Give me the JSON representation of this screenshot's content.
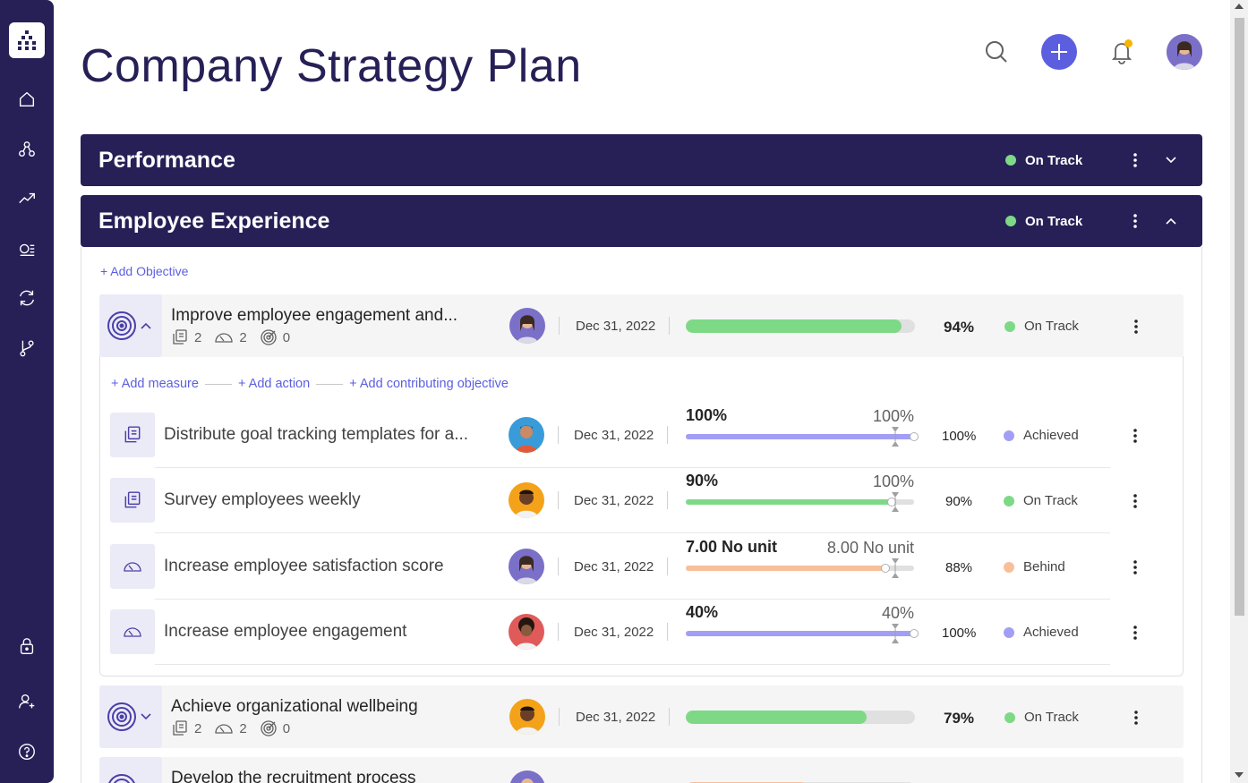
{
  "page": {
    "title": "Company Strategy Plan"
  },
  "colors": {
    "brand": "#262057",
    "accent": "#5b5fdf",
    "on_track": "#7ed987",
    "achieved": "#a39ef5",
    "behind": "#f8bf9b",
    "notification": "#f7b500"
  },
  "sidebar": {
    "icons": [
      "logo-icon",
      "home-icon",
      "hierarchy-icon",
      "trend-icon",
      "goals-list-icon",
      "refresh-icon",
      "branch-icon",
      "lock-icon",
      "add-user-icon",
      "help-icon"
    ]
  },
  "categories": [
    {
      "title": "Performance",
      "status": "On Track"
    },
    {
      "title": "Employee Experience",
      "status": "On Track"
    }
  ],
  "add_objective": "+ Add Objective",
  "sub_links": {
    "add_measure": "+ Add measure",
    "add_action": "+ Add action",
    "add_contributing": "+ Add contributing objective"
  },
  "objectives": [
    {
      "title": "Improve employee engagement and...",
      "actions": "2",
      "measures": "2",
      "objectives": "0",
      "date": "Dec 31, 2022",
      "progress": 0.94,
      "percent": "94%",
      "status": "On Track"
    },
    {
      "title": "Achieve organizational wellbeing",
      "actions": "2",
      "measures": "2",
      "objectives": "0",
      "date": "Dec 31, 2022",
      "progress": 0.79,
      "percent": "79%",
      "status": "On Track"
    },
    {
      "title": "Develop the recruitment process"
    }
  ],
  "measures": [
    {
      "title": "Distribute goal tracking templates for a...",
      "type": "action",
      "date": "Dec 31, 2022",
      "current": "100%",
      "target": "100%",
      "progress": 1.0,
      "percent": "100%",
      "status": "Achieved"
    },
    {
      "title": "Survey employees weekly",
      "type": "action",
      "date": "Dec 31, 2022",
      "current": "90%",
      "target": "100%",
      "progress": 0.9,
      "percent": "90%",
      "status": "On Track"
    },
    {
      "title": "Increase employee satisfaction score",
      "type": "measure",
      "date": "Dec 31, 2022",
      "current": "7.00 No unit",
      "target": "8.00 No unit",
      "progress": 0.875,
      "percent": "88%",
      "status": "Behind"
    },
    {
      "title": "Increase employee engagement",
      "type": "measure",
      "date": "Dec 31, 2022",
      "current": "40%",
      "target": "40%",
      "progress": 1.0,
      "percent": "100%",
      "status": "Achieved"
    }
  ]
}
